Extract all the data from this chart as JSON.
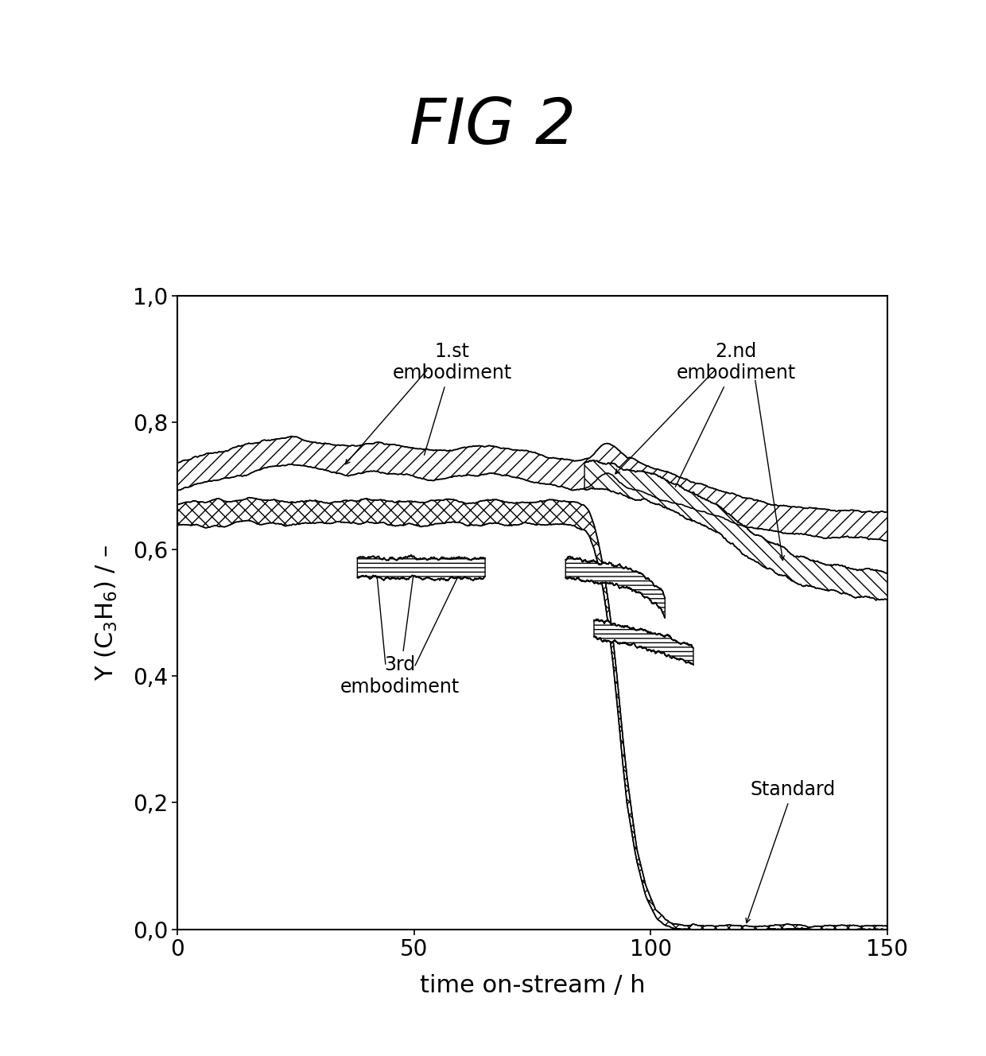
{
  "title": "FIG 2",
  "xlabel": "time on-stream / h",
  "ylabel": "Y (C₃H₆) / –",
  "xlim": [
    0,
    150
  ],
  "ylim": [
    0.0,
    1.0
  ],
  "yticks": [
    0.0,
    0.2,
    0.4,
    0.6,
    0.8,
    1.0
  ],
  "ytick_labels": [
    "0,0",
    "0,2",
    "0,4",
    "0,6",
    "0,8",
    "1,0"
  ],
  "xticks": [
    0,
    50,
    100,
    150
  ],
  "background_color": "#ffffff",
  "std_x": [
    0,
    2,
    4,
    6,
    8,
    10,
    12,
    15,
    18,
    20,
    23,
    26,
    29,
    32,
    35,
    38,
    40,
    43,
    46,
    49,
    52,
    55,
    58,
    61,
    64,
    67,
    70,
    73,
    76,
    79,
    82,
    84,
    86,
    87,
    88,
    89,
    90,
    91,
    92,
    93,
    94,
    95,
    97,
    99,
    101,
    103,
    105,
    107,
    109,
    111,
    113,
    115,
    120,
    130,
    140,
    150
  ],
  "std_y": [
    0.652,
    0.655,
    0.658,
    0.654,
    0.66,
    0.656,
    0.658,
    0.662,
    0.658,
    0.66,
    0.655,
    0.658,
    0.66,
    0.655,
    0.658,
    0.656,
    0.66,
    0.658,
    0.655,
    0.66,
    0.656,
    0.658,
    0.66,
    0.655,
    0.658,
    0.66,
    0.656,
    0.658,
    0.655,
    0.66,
    0.658,
    0.655,
    0.65,
    0.64,
    0.62,
    0.59,
    0.55,
    0.5,
    0.44,
    0.37,
    0.29,
    0.22,
    0.12,
    0.06,
    0.025,
    0.01,
    0.005,
    0.003,
    0.003,
    0.003,
    0.003,
    0.003,
    0.003,
    0.003,
    0.003,
    0.003
  ],
  "std_w": [
    0.018,
    0.018,
    0.018,
    0.018,
    0.018,
    0.018,
    0.018,
    0.018,
    0.018,
    0.018,
    0.018,
    0.018,
    0.018,
    0.018,
    0.018,
    0.018,
    0.018,
    0.018,
    0.018,
    0.018,
    0.018,
    0.018,
    0.018,
    0.018,
    0.018,
    0.018,
    0.018,
    0.018,
    0.018,
    0.018,
    0.018,
    0.018,
    0.018,
    0.018,
    0.018,
    0.018,
    0.018,
    0.018,
    0.018,
    0.018,
    0.018,
    0.018,
    0.01,
    0.008,
    0.005,
    0.004,
    0.003,
    0.003,
    0.003,
    0.003,
    0.003,
    0.003,
    0.003,
    0.003,
    0.003,
    0.003
  ],
  "first_x": [
    0,
    3,
    6,
    9,
    12,
    15,
    18,
    21,
    24,
    27,
    30,
    33,
    36,
    39,
    42,
    45,
    48,
    51,
    54,
    57,
    60,
    63,
    66,
    69,
    72,
    75,
    78,
    81,
    84,
    87,
    88,
    89,
    90,
    91,
    92,
    93,
    94,
    95,
    100,
    105,
    110,
    115,
    120,
    130,
    140,
    150
  ],
  "first_y": [
    0.715,
    0.722,
    0.728,
    0.732,
    0.738,
    0.742,
    0.748,
    0.752,
    0.755,
    0.752,
    0.748,
    0.743,
    0.74,
    0.742,
    0.745,
    0.742,
    0.738,
    0.735,
    0.732,
    0.735,
    0.738,
    0.74,
    0.742,
    0.738,
    0.735,
    0.73,
    0.725,
    0.72,
    0.718,
    0.722,
    0.728,
    0.735,
    0.74,
    0.742,
    0.738,
    0.732,
    0.726,
    0.72,
    0.708,
    0.695,
    0.682,
    0.67,
    0.658,
    0.645,
    0.64,
    0.635
  ],
  "first_w": [
    0.022,
    0.022,
    0.022,
    0.022,
    0.022,
    0.022,
    0.022,
    0.022,
    0.022,
    0.022,
    0.022,
    0.022,
    0.022,
    0.022,
    0.022,
    0.022,
    0.022,
    0.022,
    0.022,
    0.022,
    0.022,
    0.022,
    0.022,
    0.022,
    0.022,
    0.022,
    0.022,
    0.022,
    0.022,
    0.022,
    0.022,
    0.022,
    0.022,
    0.022,
    0.022,
    0.022,
    0.022,
    0.022,
    0.022,
    0.022,
    0.022,
    0.022,
    0.022,
    0.022,
    0.022,
    0.022
  ],
  "second_x": [
    86,
    88,
    90,
    92,
    95,
    98,
    101,
    105,
    110,
    115,
    120,
    125,
    130,
    135,
    140,
    145,
    150
  ],
  "second_y": [
    0.715,
    0.718,
    0.715,
    0.712,
    0.705,
    0.7,
    0.695,
    0.68,
    0.662,
    0.645,
    0.61,
    0.59,
    0.572,
    0.56,
    0.552,
    0.545,
    0.54
  ],
  "second_w": [
    0.022,
    0.022,
    0.022,
    0.022,
    0.022,
    0.022,
    0.022,
    0.022,
    0.022,
    0.022,
    0.022,
    0.022,
    0.022,
    0.022,
    0.022,
    0.022,
    0.022
  ],
  "third_x1": [
    38,
    42,
    46,
    50,
    54,
    58,
    62,
    66,
    68,
    70,
    68,
    65
  ],
  "third_y1": [
    0.57,
    0.572,
    0.568,
    0.572,
    0.568,
    0.57,
    0.568,
    0.57,
    0.568,
    0.562,
    0.558,
    0.555
  ],
  "third_w1": [
    0.016,
    0.016,
    0.016,
    0.016,
    0.016,
    0.016,
    0.016,
    0.016,
    0.016,
    0.016,
    0.016,
    0.016
  ],
  "third_x2": [
    82,
    85,
    88,
    90,
    93,
    96,
    98,
    100,
    102,
    103
  ],
  "third_y2": [
    0.57,
    0.568,
    0.565,
    0.562,
    0.558,
    0.552,
    0.545,
    0.535,
    0.522,
    0.51
  ],
  "third_w2": [
    0.016,
    0.016,
    0.016,
    0.016,
    0.016,
    0.016,
    0.016,
    0.016,
    0.016,
    0.016
  ],
  "third_x3": [
    88,
    92,
    96,
    100,
    103,
    105,
    107,
    109
  ],
  "third_y3": [
    0.475,
    0.468,
    0.462,
    0.455,
    0.448,
    0.442,
    0.438,
    0.432
  ],
  "third_w3": [
    0.014,
    0.014,
    0.014,
    0.014,
    0.014,
    0.014,
    0.014,
    0.014
  ]
}
